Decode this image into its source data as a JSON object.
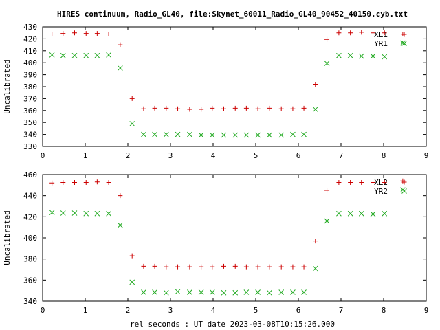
{
  "title": "HIRES continuum, Radio_GL40, file:Skynet_60011_Radio_GL40_90452_40150.cyb.txt",
  "xlabel": "rel seconds : UT date 2023-03-08T10:15:26.000",
  "colors": {
    "series1": "#cc0000",
    "series2": "#22aa22",
    "axis": "#000000",
    "background": "#ffffff"
  },
  "chart_data": [
    {
      "type": "scatter",
      "ylabel": "Uncalibrated",
      "xlim": [
        0,
        9
      ],
      "ylim": [
        330,
        430
      ],
      "xticks": [
        0,
        1,
        2,
        3,
        4,
        5,
        6,
        7,
        8,
        9
      ],
      "yticks": [
        330,
        340,
        350,
        360,
        370,
        380,
        390,
        400,
        410,
        420,
        430
      ],
      "grid": false,
      "legend_position": "top-right",
      "series": [
        {
          "name": "XL1",
          "marker": "plus",
          "x": [
            0.22,
            0.48,
            0.75,
            1.02,
            1.28,
            1.55,
            1.82,
            2.1,
            2.37,
            2.63,
            2.9,
            3.17,
            3.45,
            3.72,
            3.98,
            4.25,
            4.52,
            4.78,
            5.05,
            5.32,
            5.6,
            5.87,
            6.13,
            6.4,
            6.67,
            6.95,
            7.22,
            7.48,
            7.75,
            8.02,
            8.45
          ],
          "y": [
            424,
            424.5,
            425,
            424.5,
            424.5,
            424,
            415,
            370,
            361.5,
            362,
            362,
            361.5,
            361,
            361,
            362,
            361.5,
            362,
            362,
            361.5,
            362,
            361.5,
            361.5,
            362,
            382,
            419.5,
            425,
            425,
            425.5,
            425,
            425,
            424
          ]
        },
        {
          "name": "YR1",
          "marker": "cross",
          "x": [
            0.22,
            0.48,
            0.75,
            1.02,
            1.28,
            1.55,
            1.82,
            2.1,
            2.37,
            2.63,
            2.9,
            3.17,
            3.45,
            3.72,
            3.98,
            4.25,
            4.52,
            4.78,
            5.05,
            5.32,
            5.6,
            5.87,
            6.13,
            6.4,
            6.67,
            6.95,
            7.22,
            7.48,
            7.75,
            8.02,
            8.45
          ],
          "y": [
            406.5,
            406,
            406,
            406,
            406,
            406.5,
            395.5,
            349,
            340,
            340,
            340,
            340,
            340,
            339.5,
            339.5,
            339.5,
            339.5,
            339.5,
            339.5,
            339.5,
            339.5,
            340,
            340,
            361,
            399.5,
            406,
            406,
            405.5,
            405.5,
            405,
            416.5
          ]
        }
      ]
    },
    {
      "type": "scatter",
      "ylabel": "Uncalibrated",
      "xlim": [
        0,
        9
      ],
      "ylim": [
        340,
        460
      ],
      "xticks": [
        0,
        1,
        2,
        3,
        4,
        5,
        6,
        7,
        8,
        9
      ],
      "yticks": [
        340,
        360,
        380,
        400,
        420,
        440,
        460
      ],
      "grid": false,
      "legend_position": "top-right",
      "series": [
        {
          "name": "XL2",
          "marker": "plus",
          "x": [
            0.22,
            0.48,
            0.75,
            1.02,
            1.28,
            1.55,
            1.82,
            2.1,
            2.37,
            2.63,
            2.9,
            3.17,
            3.45,
            3.72,
            3.98,
            4.25,
            4.52,
            4.78,
            5.05,
            5.32,
            5.6,
            5.87,
            6.13,
            6.4,
            6.67,
            6.95,
            7.22,
            7.48,
            7.75,
            8.02,
            8.45
          ],
          "y": [
            452,
            452.5,
            452.5,
            452.5,
            453,
            452.5,
            440,
            383,
            373,
            373,
            372.5,
            372.5,
            372.5,
            372.5,
            372.5,
            373,
            373,
            372.5,
            372.5,
            372.5,
            372.5,
            372.5,
            372.5,
            397,
            445,
            452.5,
            452.5,
            452.5,
            452.5,
            452.5,
            454
          ]
        },
        {
          "name": "YR2",
          "marker": "cross",
          "x": [
            0.22,
            0.48,
            0.75,
            1.02,
            1.28,
            1.55,
            1.82,
            2.1,
            2.37,
            2.63,
            2.9,
            3.17,
            3.45,
            3.72,
            3.98,
            4.25,
            4.52,
            4.78,
            5.05,
            5.32,
            5.6,
            5.87,
            6.13,
            6.4,
            6.67,
            6.95,
            7.22,
            7.48,
            7.75,
            8.02,
            8.45
          ],
          "y": [
            424,
            423.5,
            423.5,
            423,
            423,
            423,
            412,
            358,
            348.5,
            348.5,
            348,
            349,
            348.5,
            348.5,
            348.5,
            348,
            348,
            348.5,
            348.5,
            348,
            348.5,
            348.5,
            348.5,
            371,
            416,
            423,
            423,
            423,
            422.5,
            423,
            445.5
          ]
        }
      ]
    }
  ]
}
